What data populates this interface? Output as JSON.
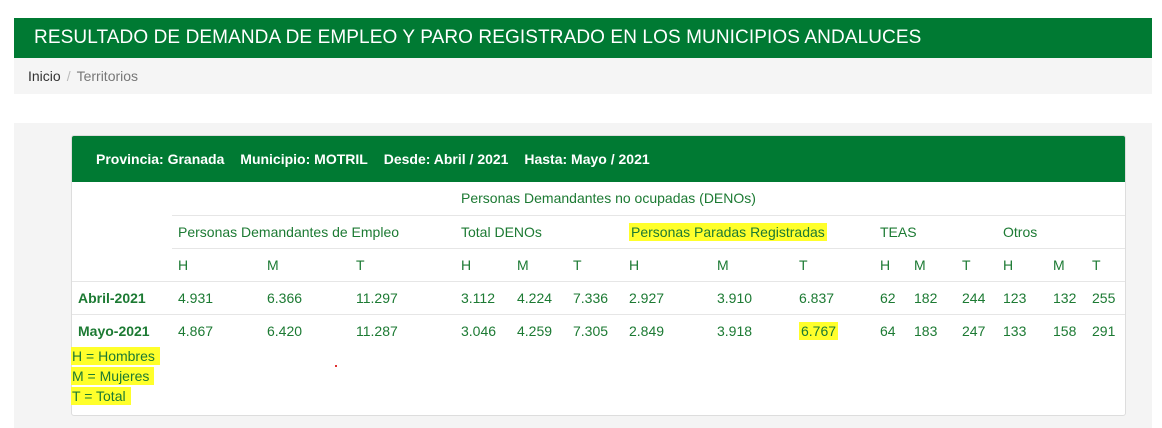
{
  "header": {
    "title": "RESULTADO DE DEMANDA DE EMPLEO Y PARO REGISTRADO EN LOS MUNICIPIOS ANDALUCES"
  },
  "breadcrumb": {
    "home": "Inicio",
    "separator": "/",
    "current": "Territorios"
  },
  "panel": {
    "provincia": "Provincia: Granada",
    "municipio": "Municipio: MOTRIL",
    "desde": "Desde: Abril / 2021",
    "hasta": "Hasta: Mayo / 2021"
  },
  "table": {
    "group_denos": "Personas Demandantes no ocupadas (DENOs)",
    "group_demandantes": "Personas Demandantes de Empleo",
    "group_total_denos": "Total DENOs",
    "group_paradas": "Personas Paradas Registradas",
    "group_teas": "TEAS",
    "group_otros": "Otros",
    "subheaders": [
      "H",
      "M",
      "T",
      "H",
      "M",
      "T",
      "H",
      "M",
      "T",
      "H",
      "M",
      "T",
      "H",
      "M",
      "T"
    ],
    "rows": [
      {
        "label": "Abril-2021",
        "values": [
          "4.931",
          "6.366",
          "11.297",
          "3.112",
          "4.224",
          "7.336",
          "2.927",
          "3.910",
          "6.837",
          "62",
          "182",
          "244",
          "123",
          "132",
          "255"
        ]
      },
      {
        "label": "Mayo-2021",
        "values": [
          "4.867",
          "6.420",
          "11.287",
          "3.046",
          "4.259",
          "7.305",
          "2.849",
          "3.918",
          "6.767",
          "64",
          "183",
          "247",
          "133",
          "158",
          "291"
        ]
      }
    ]
  },
  "legend": {
    "items": [
      {
        "key": "H",
        "text": " = Hombres"
      },
      {
        "key": "M",
        "text": " = Mujeres"
      },
      {
        "key": "T",
        "text": " = Total"
      }
    ]
  },
  "colors": {
    "brand_green": "#007a33",
    "text_green": "#1c7a33",
    "highlight": "#ffff2b"
  }
}
